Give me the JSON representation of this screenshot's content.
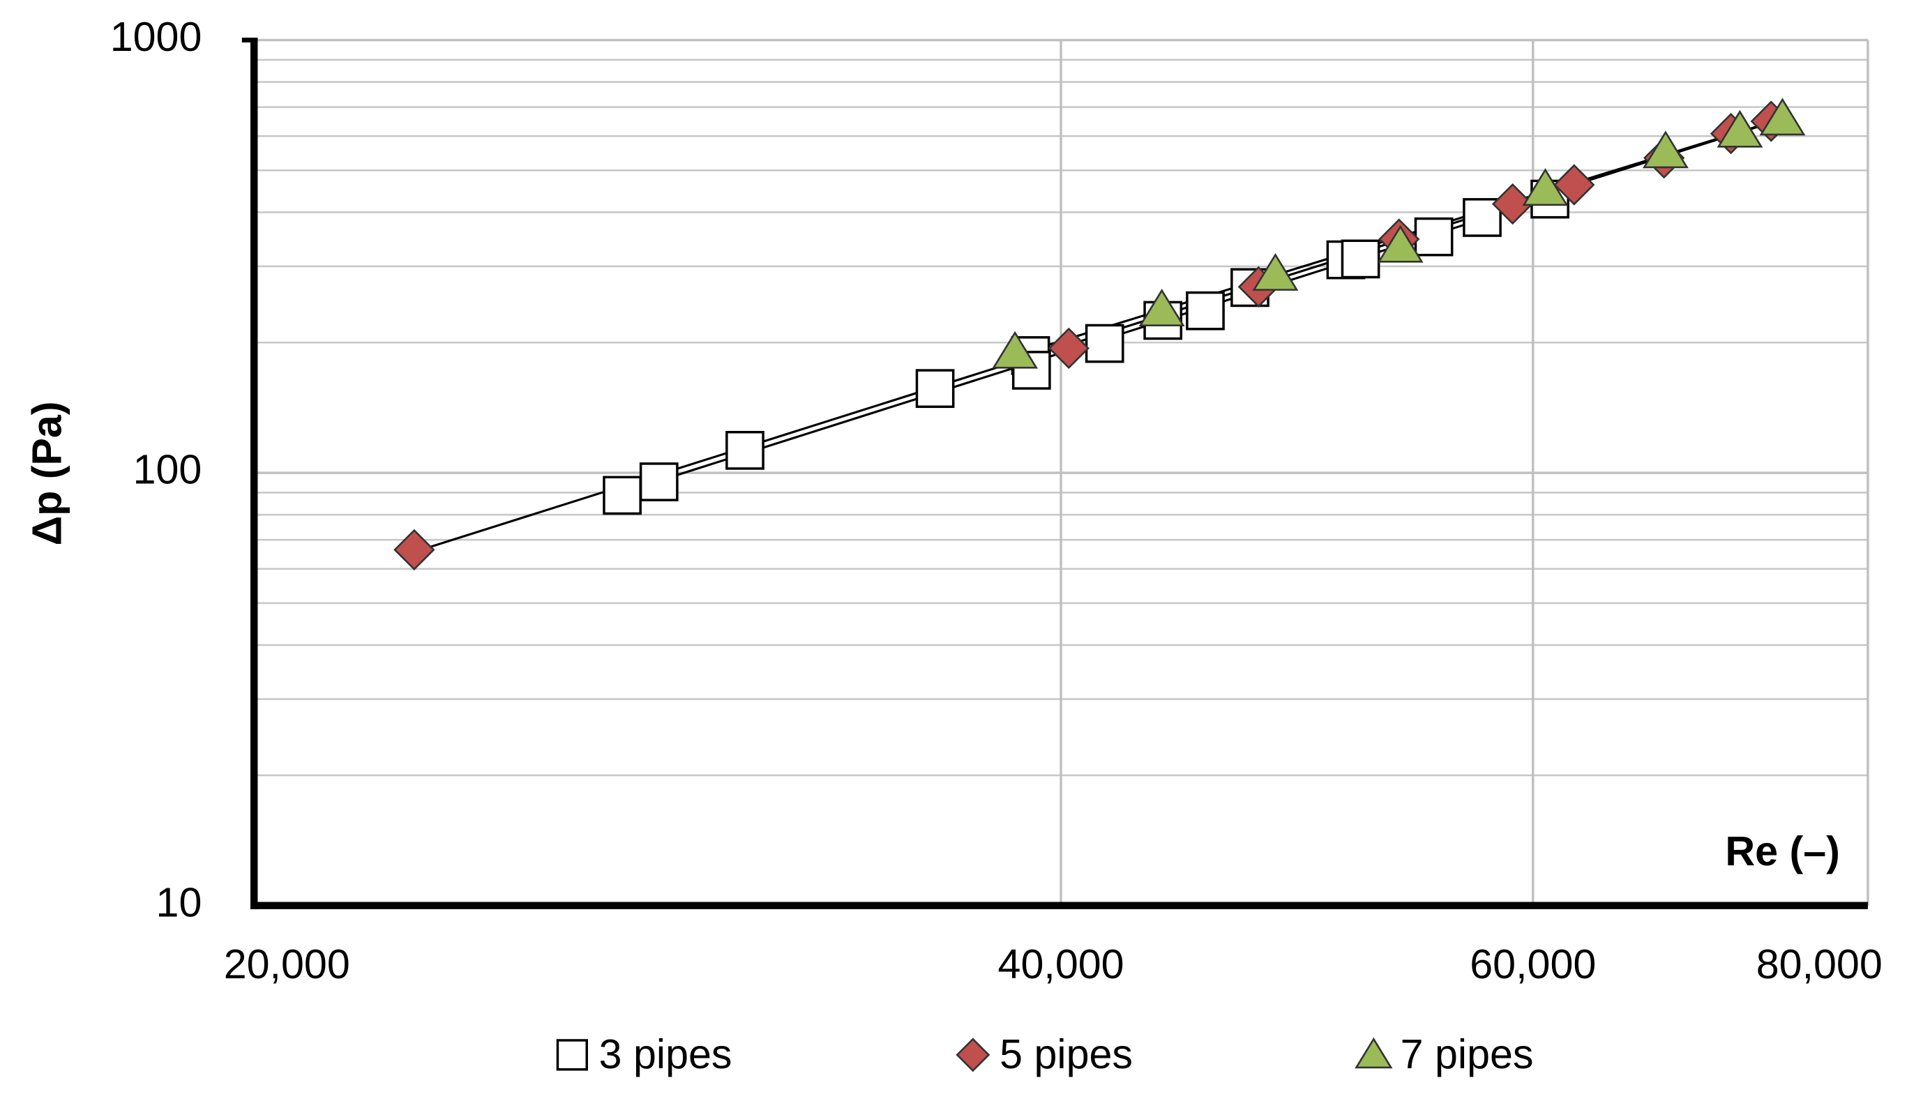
{
  "chart_data": {
    "type": "scatter",
    "x_label": "Re (–)",
    "y_label": "Δp (Pa)",
    "x_log": true,
    "y_log": true,
    "grid": true,
    "trendline": true,
    "legend": "bottom",
    "xlim": [
      20000,
      80000
    ],
    "xticks": [
      {
        "value": 20000,
        "label": "20,000"
      },
      {
        "value": 40000,
        "label": "40,000"
      },
      {
        "value": 60000,
        "label": "60,000"
      },
      {
        "value": 80000,
        "label": "80,000"
      }
    ],
    "ylim": [
      10,
      1000
    ],
    "yticks": [
      10,
      100,
      1000
    ],
    "y_minor_ticks": [
      20,
      30,
      40,
      50,
      60,
      70,
      80,
      90,
      200,
      300,
      400,
      500,
      600,
      700,
      800,
      900
    ],
    "series": [
      {
        "name": "3 pipes",
        "marker": "square",
        "color": "#ffffff",
        "x": [
          27440,
          28320,
          30490,
          35900,
          38970,
          39000,
          41530,
          43660,
          45280,
          47050,
          51090,
          51740,
          55100,
          57440,
          60880
        ],
        "values": [
          88.7,
          95.3,
          112.7,
          156.6,
          186.6,
          172.6,
          199,
          225,
          236.8,
          268,
          310.6,
          312,
          351,
          389,
          429
        ]
      },
      {
        "name": "5 pipes",
        "marker": "diamond",
        "color": "#c0504d",
        "x": [
          22950,
          40270,
          47400,
          53480,
          58960,
          62160,
          67150,
          71120,
          73620
        ],
        "values": [
          66.4,
          194,
          269,
          346.7,
          418,
          463,
          534,
          608,
          649
        ]
      },
      {
        "name": "7 pipes",
        "marker": "triangle",
        "color": "#9bbb59",
        "x": [
          38450,
          43620,
          48090,
          53540,
          60640,
          67240,
          71670,
          74340
        ],
        "values": [
          190,
          238,
          287.6,
          334,
          452,
          552,
          616,
          657
        ]
      }
    ]
  }
}
